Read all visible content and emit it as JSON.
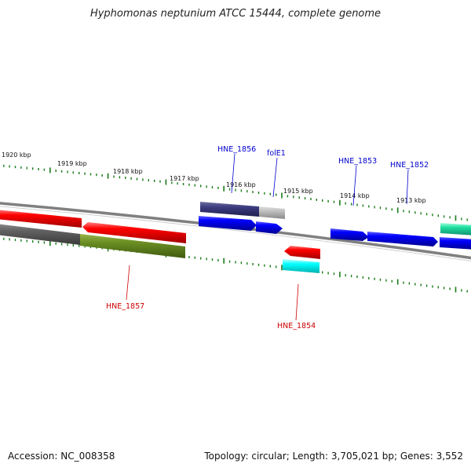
{
  "header": {
    "title": "Hyphomonas neptunium ATCC 15444, complete genome"
  },
  "footer": {
    "accession": "Accession: NC_008358",
    "summary": "Topology: circular; Length: 3,705,021 bp; Genes: 3,552"
  },
  "colors": {
    "label_plus": "#0000cc",
    "label_minus": "#cc0000",
    "tick": "#1a7a1a",
    "backbone": "#808080"
  },
  "scale": {
    "unit": "kbp",
    "labels": [
      {
        "kbp": 1920,
        "text": "1920 kbp"
      },
      {
        "kbp": 1919,
        "text": "1919 kbp"
      },
      {
        "kbp": 1918,
        "text": "1918 kbp"
      },
      {
        "kbp": 1917,
        "text": "1917 kbp"
      },
      {
        "kbp": 1916,
        "text": "1916 kbp"
      },
      {
        "kbp": 1915,
        "text": "1915 kbp"
      },
      {
        "kbp": 1914,
        "text": "1914 kbp"
      },
      {
        "kbp": 1913,
        "text": "1913 kbp"
      }
    ]
  },
  "gene_labels": [
    {
      "name": "HNE_1856",
      "strand": "plus"
    },
    {
      "name": "folE1",
      "strand": "plus"
    },
    {
      "name": "HNE_1853",
      "strand": "plus"
    },
    {
      "name": "HNE_1852",
      "strand": "plus"
    },
    {
      "name": "HNE_1857",
      "strand": "minus"
    },
    {
      "name": "HNE_1854",
      "strand": "minus"
    }
  ]
}
